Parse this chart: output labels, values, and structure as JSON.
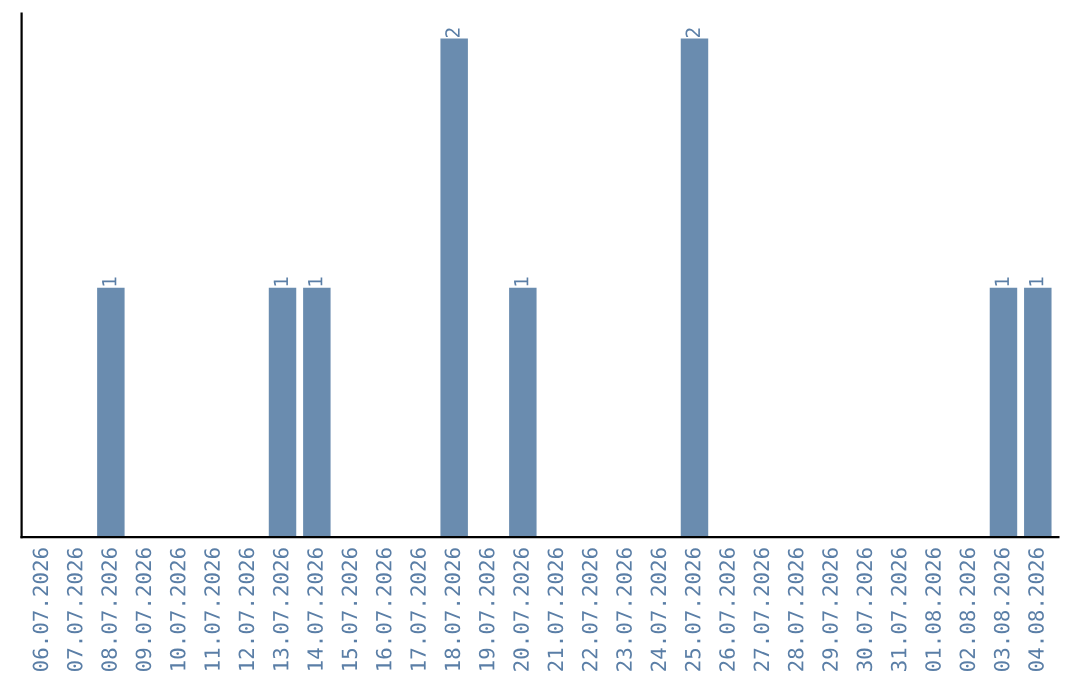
{
  "chart_data": {
    "type": "bar",
    "categories": [
      "06.07.2026",
      "07.07.2026",
      "08.07.2026",
      "09.07.2026",
      "10.07.2026",
      "11.07.2026",
      "12.07.2026",
      "13.07.2026",
      "14.07.2026",
      "15.07.2026",
      "16.07.2026",
      "17.07.2026",
      "18.07.2026",
      "19.07.2026",
      "20.07.2026",
      "21.07.2026",
      "22.07.2026",
      "23.07.2026",
      "24.07.2026",
      "25.07.2026",
      "26.07.2026",
      "27.07.2026",
      "28.07.2026",
      "29.07.2026",
      "30.07.2026",
      "31.07.2026",
      "01.08.2026",
      "02.08.2026",
      "03.08.2026",
      "04.08.2026"
    ],
    "values": [
      0,
      0,
      1,
      0,
      0,
      0,
      0,
      1,
      1,
      0,
      0,
      0,
      2,
      0,
      1,
      0,
      0,
      0,
      0,
      2,
      0,
      0,
      0,
      0,
      0,
      0,
      0,
      0,
      1,
      1
    ],
    "value_labels": [
      null,
      null,
      "1",
      null,
      null,
      null,
      null,
      "1",
      "1",
      null,
      null,
      null,
      "2",
      null,
      "1",
      null,
      null,
      null,
      null,
      "2",
      null,
      null,
      null,
      null,
      null,
      null,
      null,
      null,
      "1",
      "1"
    ],
    "color": "#6a8caf",
    "tick_labels": "x",
    "grid": false,
    "legend": false
  }
}
